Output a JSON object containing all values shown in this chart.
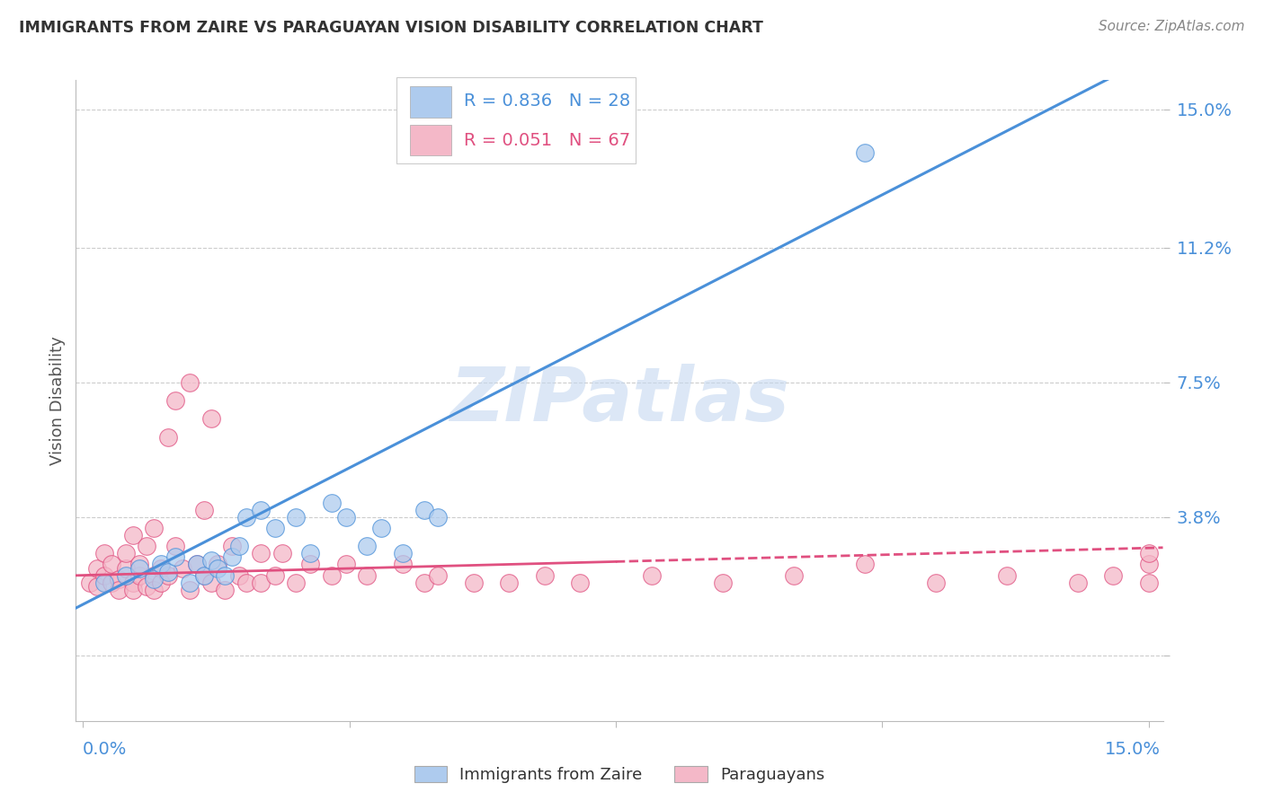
{
  "title": "IMMIGRANTS FROM ZAIRE VS PARAGUAYAN VISION DISABILITY CORRELATION CHART",
  "source": "Source: ZipAtlas.com",
  "ylabel": "Vision Disability",
  "yticks": [
    0.0,
    0.038,
    0.075,
    0.112,
    0.15
  ],
  "ytick_labels": [
    "",
    "3.8%",
    "7.5%",
    "11.2%",
    "15.0%"
  ],
  "xticks": [
    0.0,
    0.0375,
    0.075,
    0.1125,
    0.15
  ],
  "xlim": [
    -0.001,
    0.152
  ],
  "ylim": [
    -0.018,
    0.158
  ],
  "legend_r1": "R = 0.836",
  "legend_n1": "N = 28",
  "legend_r2": "R = 0.051",
  "legend_n2": "N = 67",
  "blue_color": "#aecbee",
  "pink_color": "#f4b8c8",
  "blue_line_color": "#4a90d9",
  "pink_line_color": "#e05080",
  "watermark": "ZIPatlas",
  "blue_scatter_x": [
    0.003,
    0.006,
    0.008,
    0.01,
    0.011,
    0.012,
    0.013,
    0.015,
    0.016,
    0.017,
    0.018,
    0.019,
    0.02,
    0.021,
    0.022,
    0.023,
    0.025,
    0.027,
    0.03,
    0.032,
    0.035,
    0.037,
    0.04,
    0.042,
    0.045,
    0.048,
    0.05,
    0.11
  ],
  "blue_scatter_y": [
    0.02,
    0.022,
    0.024,
    0.021,
    0.025,
    0.023,
    0.027,
    0.02,
    0.025,
    0.022,
    0.026,
    0.024,
    0.022,
    0.027,
    0.03,
    0.038,
    0.04,
    0.035,
    0.038,
    0.028,
    0.042,
    0.038,
    0.03,
    0.035,
    0.028,
    0.04,
    0.038,
    0.138
  ],
  "pink_scatter_x": [
    0.001,
    0.002,
    0.002,
    0.003,
    0.003,
    0.004,
    0.004,
    0.005,
    0.005,
    0.006,
    0.006,
    0.007,
    0.007,
    0.007,
    0.008,
    0.008,
    0.009,
    0.009,
    0.01,
    0.01,
    0.01,
    0.011,
    0.011,
    0.012,
    0.012,
    0.013,
    0.013,
    0.014,
    0.015,
    0.015,
    0.016,
    0.017,
    0.017,
    0.018,
    0.018,
    0.019,
    0.02,
    0.021,
    0.022,
    0.023,
    0.025,
    0.025,
    0.027,
    0.028,
    0.03,
    0.032,
    0.035,
    0.037,
    0.04,
    0.045,
    0.048,
    0.05,
    0.055,
    0.06,
    0.065,
    0.07,
    0.08,
    0.09,
    0.1,
    0.11,
    0.12,
    0.13,
    0.14,
    0.145,
    0.15,
    0.15,
    0.15
  ],
  "pink_scatter_y": [
    0.02,
    0.024,
    0.019,
    0.022,
    0.028,
    0.02,
    0.025,
    0.021,
    0.018,
    0.024,
    0.028,
    0.02,
    0.033,
    0.018,
    0.022,
    0.025,
    0.019,
    0.03,
    0.022,
    0.018,
    0.035,
    0.024,
    0.02,
    0.06,
    0.022,
    0.03,
    0.07,
    0.024,
    0.018,
    0.075,
    0.025,
    0.04,
    0.022,
    0.065,
    0.02,
    0.025,
    0.018,
    0.03,
    0.022,
    0.02,
    0.02,
    0.028,
    0.022,
    0.028,
    0.02,
    0.025,
    0.022,
    0.025,
    0.022,
    0.025,
    0.02,
    0.022,
    0.02,
    0.02,
    0.022,
    0.02,
    0.022,
    0.02,
    0.022,
    0.025,
    0.02,
    0.022,
    0.02,
    0.022,
    0.025,
    0.02,
    0.028
  ],
  "blue_line_slope": 1.0,
  "blue_line_intercept": 0.014,
  "pink_line_slope": 0.05,
  "pink_line_intercept": 0.022
}
